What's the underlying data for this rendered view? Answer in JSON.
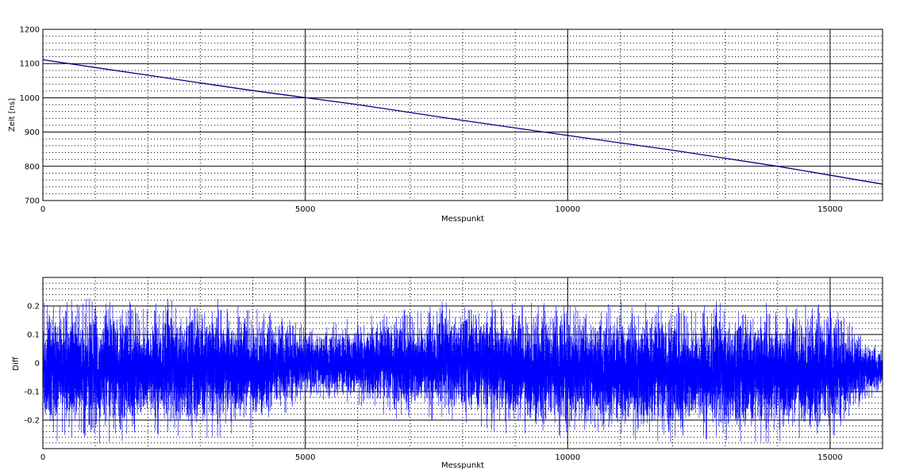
{
  "colors": {
    "background": "#ffffff",
    "axes": "#000000",
    "major_grid": "#000000",
    "minor_grid": "#000000",
    "series": "#0000ff",
    "series_dark": "#000080"
  },
  "chart_data": [
    {
      "type": "line",
      "title": "",
      "xlabel": "Messpunkt",
      "ylabel": "Zeit [ns]",
      "xlim": [
        0,
        16000
      ],
      "ylim": [
        700,
        1200
      ],
      "xticks": [
        0,
        5000,
        10000,
        15000
      ],
      "xtick_labels": [
        "0",
        "5000",
        "10000",
        "15000"
      ],
      "yticks": [
        700,
        800,
        900,
        1000,
        1100,
        1200
      ],
      "ytick_labels": [
        "700",
        "800",
        "900",
        "1000",
        "1100",
        "1200"
      ],
      "x_minor_step": 1000,
      "y_minor_step": 20,
      "grid": true,
      "legend": "none",
      "series": [
        {
          "x": [
            0,
            2000,
            4000,
            6000,
            8000,
            10000,
            12000,
            14000,
            16000
          ],
          "y": [
            1111,
            1066,
            1021,
            980,
            934,
            890,
            847,
            800,
            748
          ]
        }
      ]
    },
    {
      "type": "line",
      "title": "",
      "xlabel": "Messpunkt",
      "ylabel": "Diff",
      "xlim": [
        0,
        16000
      ],
      "ylim": [
        -0.3,
        0.3
      ],
      "xticks": [
        0,
        5000,
        10000,
        15000
      ],
      "xtick_labels": [
        "0",
        "5000",
        "10000",
        "15000"
      ],
      "yticks": [
        -0.2,
        -0.1,
        0,
        0.1,
        0.2
      ],
      "ytick_labels": [
        "-0.2",
        "-0.1",
        "0",
        "0.1",
        "0.2"
      ],
      "x_minor_step": 1000,
      "y_minor_step": 0.02,
      "grid": true,
      "legend": "none",
      "series": [
        {
          "noise_samples": 16000,
          "envelope": {
            "x": [
              0,
              1000,
              2000,
              3000,
              4000,
              5000,
              6000,
              7000,
              8000,
              9000,
              10000,
              11000,
              12000,
              13000,
              14000,
              15000,
              16000
            ],
            "upper": [
              0.22,
              0.23,
              0.22,
              0.24,
              0.2,
              0.14,
              0.16,
              0.2,
              0.23,
              0.22,
              0.21,
              0.22,
              0.21,
              0.22,
              0.21,
              0.21,
              0.06
            ],
            "lower": [
              -0.27,
              -0.29,
              -0.26,
              -0.27,
              -0.24,
              -0.14,
              -0.16,
              -0.21,
              -0.21,
              -0.26,
              -0.26,
              -0.28,
              -0.28,
              -0.28,
              -0.28,
              -0.27,
              -0.1
            ]
          }
        }
      ]
    }
  ]
}
